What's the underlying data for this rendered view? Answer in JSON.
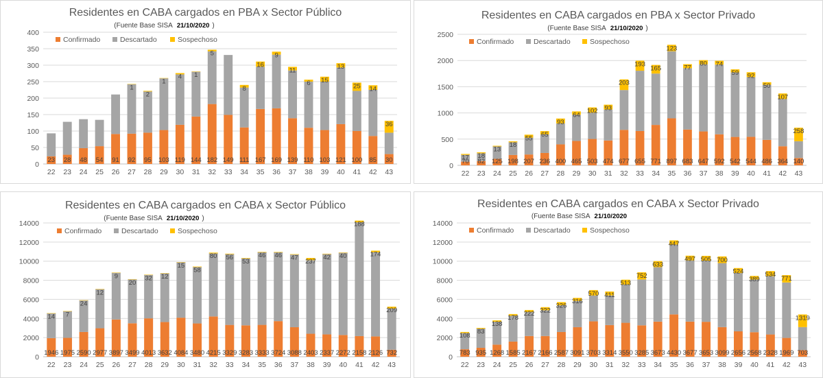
{
  "labels": {
    "fuente": "(Fuente  Base SISA",
    "confirmado": "Confirmado",
    "descartado": "Descartado",
    "sospechoso": "Sospechoso"
  },
  "colors": {
    "confirmado": "#ED7D31",
    "descartado": "#A5A5A5",
    "sospechoso": "#FFC000"
  },
  "chart_data": [
    {
      "type": "bar",
      "stacked": true,
      "title": "Residentes en CABA cargados en PBA x Sector Público",
      "source": "(Fuente  Base SISA",
      "date": "21/10/2020",
      "source_close": ")",
      "categories": [
        "22",
        "23",
        "24",
        "25",
        "26",
        "27",
        "28",
        "29",
        "30",
        "31",
        "32",
        "33",
        "34",
        "35",
        "36",
        "37",
        "38",
        "39",
        "40",
        "41",
        "42",
        "43"
      ],
      "ylim": [
        0,
        400
      ],
      "yticks": [
        0,
        50,
        100,
        150,
        200,
        250,
        300,
        350,
        400
      ],
      "grid": true,
      "legend": "top-left",
      "series": [
        {
          "name": "Confirmado",
          "values": [
            23,
            28,
            48,
            54,
            91,
            92,
            95,
            103,
            119,
            144,
            182,
            149,
            111,
            167,
            169,
            139,
            110,
            103,
            121,
            100,
            85,
            30
          ]
        },
        {
          "name": "Descartado",
          "values": [
            70,
            100,
            88,
            80,
            120,
            150,
            125,
            157,
            153,
            136,
            160,
            182,
            121,
            128,
            163,
            145,
            140,
            147,
            172,
            122,
            140,
            65
          ]
        },
        {
          "name": "Sospechoso",
          "values": [
            null,
            null,
            null,
            null,
            null,
            1,
            2,
            1,
            4,
            1,
            5,
            null,
            8,
            16,
            9,
            11,
            6,
            15,
            13,
            25,
            14,
            36
          ]
        }
      ],
      "value_labels": {
        "Confirmado": [
          "23",
          "28",
          "48",
          "54",
          "91",
          "92",
          "95",
          "103",
          "119",
          "144",
          "182",
          "149",
          "111",
          "167",
          "169",
          "139",
          "110",
          "103",
          "121",
          "100",
          "85",
          "30"
        ],
        "Sospechoso": [
          "",
          "",
          "",
          "",
          "",
          "1",
          "2",
          "1",
          "4",
          "1",
          "5",
          "",
          "8",
          "16",
          "9",
          "11",
          "6",
          "15",
          "13",
          "25",
          "14",
          "36"
        ]
      }
    },
    {
      "type": "bar",
      "stacked": true,
      "title": "Residentes en CABA cargados en PBA x Sector Privado",
      "source": "(Fuente  Base SISA",
      "date": "21/10/2020",
      "source_close": ")",
      "categories": [
        "22",
        "23",
        "24",
        "25",
        "26",
        "27",
        "28",
        "29",
        "30",
        "31",
        "32",
        "33",
        "34",
        "35",
        "36",
        "37",
        "38",
        "39",
        "40",
        "41",
        "42",
        "43"
      ],
      "ylim": [
        0,
        2500
      ],
      "yticks": [
        0,
        500,
        1000,
        1500,
        2000,
        2500
      ],
      "grid": true,
      "legend": "top-left",
      "series": [
        {
          "name": "Confirmado",
          "values": [
            70,
            82,
            125,
            198,
            207,
            236,
            400,
            465,
            503,
            474,
            677,
            655,
            771,
            897,
            683,
            647,
            592,
            542,
            544,
            486,
            364,
            140
          ]
        },
        {
          "name": "Descartado",
          "values": [
            130,
            148,
            235,
            242,
            323,
            352,
            400,
            500,
            500,
            590,
            760,
            1150,
            980,
            1280,
            1170,
            1280,
            1330,
            1230,
            1140,
            1050,
            900,
            320
          ]
        },
        {
          "name": "Sospechoso",
          "values": [
            17,
            18,
            13,
            18,
            55,
            65,
            93,
            64,
            102,
            93,
            203,
            193,
            165,
            123,
            77,
            80,
            74,
            59,
            92,
            50,
            107,
            258
          ]
        }
      ],
      "value_labels": {
        "Confirmado": [
          "70",
          "82",
          "125",
          "198",
          "207",
          "236",
          "400",
          "465",
          "503",
          "474",
          "677",
          "655",
          "771",
          "897",
          "683",
          "647",
          "592",
          "542",
          "544",
          "486",
          "364",
          "140"
        ],
        "Sospechoso": [
          "17",
          "18",
          "13",
          "18",
          "55",
          "65",
          "93",
          "64",
          "102",
          "93",
          "203",
          "193",
          "165",
          "123",
          "77",
          "80",
          "74",
          "59",
          "92",
          "50",
          "107",
          "258"
        ]
      }
    },
    {
      "type": "bar",
      "stacked": true,
      "title": "Residentes en CABA cargados en CABA x Sector Público",
      "source": "(Fuente  Base SISA",
      "date": "21/10/2020",
      "source_close": ")",
      "categories": [
        "22",
        "23",
        "24",
        "25",
        "26",
        "27",
        "28",
        "29",
        "30",
        "31",
        "32",
        "33",
        "34",
        "35",
        "36",
        "37",
        "38",
        "39",
        "40",
        "41",
        "42",
        "43"
      ],
      "ylim": [
        0,
        14000
      ],
      "yticks": [
        0,
        2000,
        4000,
        6000,
        8000,
        10000,
        12000,
        14000
      ],
      "grid": true,
      "legend": "top-left",
      "series": [
        {
          "name": "Confirmado",
          "values": [
            1946,
            1975,
            2590,
            2977,
            3897,
            3499,
            4013,
            3632,
            4084,
            3480,
            4215,
            3329,
            3283,
            3333,
            3724,
            3088,
            2403,
            2337,
            2272,
            2158,
            2126,
            732
          ]
        },
        {
          "name": "Descartado",
          "values": [
            2600,
            2800,
            3300,
            4100,
            4900,
            4600,
            4550,
            5100,
            5800,
            5900,
            6600,
            7400,
            7000,
            7600,
            7200,
            7600,
            7700,
            8400,
            8600,
            11900,
            8800,
            4300
          ]
        },
        {
          "name": "Sospechoso",
          "values": [
            14,
            7,
            24,
            12,
            9,
            20,
            32,
            12,
            15,
            58,
            80,
            56,
            53,
            46,
            46,
            47,
            237,
            42,
            40,
            188,
            174,
            209
          ]
        }
      ],
      "value_labels": {
        "Confirmado": [
          "1946",
          "1975",
          "2590",
          "2977",
          "3897",
          "3499",
          "4013",
          "3632",
          "4084",
          "3480",
          "4215",
          "3329",
          "3283",
          "3333",
          "3724",
          "3088",
          "2403",
          "2337",
          "2272",
          "2158",
          "2126",
          "732"
        ],
        "Sospechoso": [
          "14",
          "7",
          "24",
          "12",
          "9",
          "20",
          "32",
          "12",
          "15",
          "58",
          "80",
          "56",
          "53",
          "46",
          "46",
          "47",
          "237",
          "42",
          "40",
          "188",
          "174",
          "209"
        ]
      }
    },
    {
      "type": "bar",
      "stacked": true,
      "title": "Residentes en CABA cargados en CABA x Sector Privado",
      "source": "(Fuente  Base SISA",
      "date": "21/10/2020",
      "source_close": "",
      "categories": [
        "22",
        "23",
        "24",
        "25",
        "26",
        "27",
        "28",
        "29",
        "30",
        "31",
        "32",
        "33",
        "34",
        "35",
        "36",
        "37",
        "38",
        "39",
        "40",
        "41",
        "42",
        "43"
      ],
      "ylim": [
        0,
        14000
      ],
      "yticks": [
        0,
        2000,
        4000,
        6000,
        8000,
        10000,
        12000,
        14000
      ],
      "grid": true,
      "legend": "top-left",
      "series": [
        {
          "name": "Confirmado",
          "values": [
            783,
            935,
            1268,
            1585,
            2167,
            2166,
            2587,
            3091,
            3703,
            3314,
            3550,
            3285,
            3673,
            4430,
            3677,
            3653,
            3099,
            2656,
            2568,
            2328,
            1969,
            703
          ]
        },
        {
          "name": "Descartado",
          "values": [
            1700,
            2000,
            2400,
            2700,
            2500,
            2700,
            2800,
            2750,
            2700,
            3100,
            4000,
            4800,
            5700,
            7300,
            6400,
            6400,
            6700,
            6100,
            5500,
            6100,
            5800,
            2400
          ]
        },
        {
          "name": "Sospechoso",
          "values": [
            108,
            83,
            138,
            178,
            222,
            322,
            326,
            316,
            570,
            411,
            513,
            752,
            633,
            447,
            497,
            505,
            700,
            524,
            389,
            534,
            771,
            1319
          ]
        }
      ],
      "value_labels": {
        "Confirmado": [
          "783",
          "935",
          "1268",
          "1585",
          "2167",
          "2166",
          "2587",
          "3091",
          "3703",
          "3314",
          "3550",
          "3285",
          "3673",
          "4430",
          "3677",
          "3653",
          "3099",
          "2656",
          "2568",
          "2328",
          "1969",
          "703"
        ],
        "Sospechoso": [
          "108",
          "83",
          "138",
          "178",
          "222",
          "322",
          "326",
          "316",
          "570",
          "411",
          "513",
          "752",
          "633",
          "447",
          "497",
          "505",
          "700",
          "524",
          "389",
          "534",
          "771",
          "1319"
        ]
      }
    }
  ]
}
